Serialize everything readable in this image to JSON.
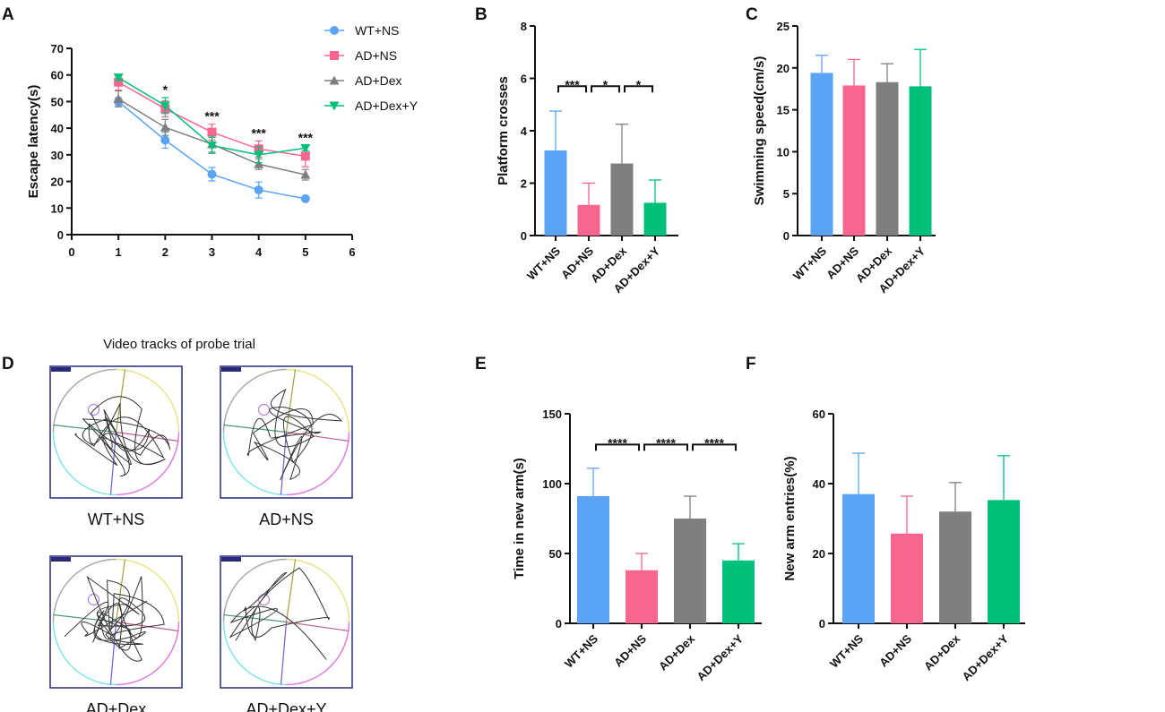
{
  "colors": {
    "WT+NS": "#5ba3f5",
    "AD+NS": "#f8658f",
    "AD+Dex": "#7f7f7f",
    "AD+Dex+Y": "#00c07a"
  },
  "track_panel": {
    "label": "D",
    "title": "Video tracks of probe trial",
    "tracks": [
      "WT+NS",
      "AD+NS",
      "AD+Dex",
      "AD+Dex+Y"
    ]
  },
  "chart_data": [
    {
      "panel": "A",
      "type": "line",
      "xlabel": "",
      "ylabel": "Escape latency(s)",
      "xlim": [
        0,
        6
      ],
      "ylim": [
        0,
        70
      ],
      "xticks": [
        "0",
        "1",
        "2",
        "3",
        "4",
        "5",
        "6"
      ],
      "yticks": [
        "0",
        "10",
        "20",
        "30",
        "40",
        "50",
        "60",
        "70"
      ],
      "x": [
        1,
        2,
        3,
        4,
        5
      ],
      "legend": "top-right",
      "series": [
        {
          "name": "WT+NS",
          "marker": "circle",
          "values": [
            50,
            35.5,
            22.7,
            16.8,
            13.5
          ],
          "errors": [
            1.5,
            3,
            2.5,
            3,
            0.5
          ]
        },
        {
          "name": "AD+NS",
          "marker": "square",
          "values": [
            57.3,
            47.3,
            38.5,
            32.2,
            29.5
          ],
          "errors": [
            3,
            3,
            3,
            3,
            4
          ]
        },
        {
          "name": "AD+Dex",
          "marker": "triangle-up",
          "values": [
            51,
            40.3,
            34,
            26.5,
            22.5
          ],
          "errors": [
            3,
            3,
            3,
            2,
            2
          ]
        },
        {
          "name": "AD+Dex+Y",
          "marker": "triangle-down",
          "values": [
            59,
            48.5,
            33.5,
            30,
            32.5
          ],
          "errors": [
            1,
            3,
            3,
            3,
            1
          ]
        }
      ],
      "annotations": [
        {
          "x": 2,
          "text": "*"
        },
        {
          "x": 3,
          "text": "***"
        },
        {
          "x": 4,
          "text": "***"
        },
        {
          "x": 5,
          "text": "***"
        }
      ]
    },
    {
      "panel": "B",
      "type": "bar",
      "ylabel": "Platform crosses",
      "ylim": [
        0,
        8
      ],
      "yticks": [
        "0",
        "2",
        "4",
        "6",
        "8"
      ],
      "categories": [
        "WT+NS",
        "AD+NS",
        "AD+Dex",
        "AD+Dex+Y"
      ],
      "values": [
        3.25,
        1.17,
        2.75,
        1.25
      ],
      "error_top": [
        4.75,
        2.0,
        4.25,
        2.12
      ],
      "brackets": [
        {
          "from": 0,
          "to": 1,
          "y": 5.7,
          "text": "***"
        },
        {
          "from": 1,
          "to": 2,
          "y": 5.7,
          "text": "*"
        },
        {
          "from": 2,
          "to": 3,
          "y": 5.7,
          "text": "*"
        }
      ]
    },
    {
      "panel": "C",
      "type": "bar",
      "ylabel": "Swimming speed(cm/s)",
      "ylim": [
        0,
        25
      ],
      "yticks": [
        "0",
        "5",
        "10",
        "15",
        "20",
        "25"
      ],
      "categories": [
        "WT+NS",
        "AD+NS",
        "AD+Dex",
        "AD+Dex+Y"
      ],
      "values": [
        19.4,
        17.9,
        18.3,
        17.8
      ],
      "error_top": [
        21.5,
        21.0,
        20.5,
        22.2
      ],
      "brackets": []
    },
    {
      "panel": "E",
      "type": "bar",
      "ylabel": "Time in new arm(s)",
      "ylim": [
        0,
        150
      ],
      "yticks": [
        "0",
        "50",
        "100",
        "150"
      ],
      "categories": [
        "WT+NS",
        "AD+NS",
        "AD+Dex",
        "AD+Dex+Y"
      ],
      "values": [
        91,
        38,
        75,
        45
      ],
      "error_top": [
        111,
        50,
        91,
        57
      ],
      "brackets": [
        {
          "from": 0,
          "to": 1,
          "y": 128,
          "text": "****"
        },
        {
          "from": 1,
          "to": 2,
          "y": 128,
          "text": "****"
        },
        {
          "from": 2,
          "to": 3,
          "y": 128,
          "text": "****"
        }
      ]
    },
    {
      "panel": "F",
      "type": "bar",
      "ylabel": "New arm entries(%)",
      "ylim": [
        0,
        60
      ],
      "yticks": [
        "0",
        "20",
        "40",
        "60"
      ],
      "categories": [
        "WT+NS",
        "AD+NS",
        "AD+Dex",
        "AD+Dex+Y"
      ],
      "values": [
        37,
        25.7,
        32,
        35.3
      ],
      "error_top": [
        48.7,
        36.4,
        40.3,
        48
      ],
      "brackets": []
    }
  ]
}
